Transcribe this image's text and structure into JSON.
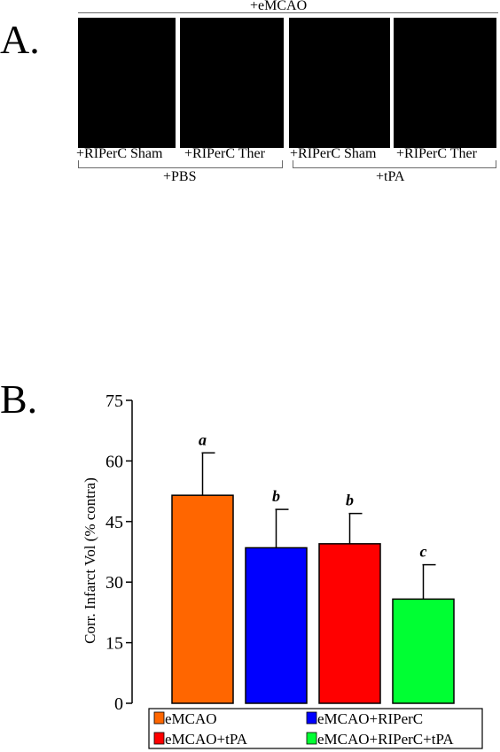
{
  "panel_a": {
    "label": "A.",
    "top_group": "+eMCAO",
    "conditions": [
      "+RIPerC Sham",
      "+RIPerC Ther",
      "+RIPerC Sham",
      "+RIPerC Ther"
    ],
    "bottom_groups": [
      "+PBS",
      "+tPA"
    ]
  },
  "panel_b": {
    "label": "B."
  },
  "chart_data": {
    "type": "bar",
    "ylabel": "Corr. Infarct Vol (% contra)",
    "xlabel": "",
    "ylim": [
      0,
      75
    ],
    "yticks": [
      0,
      15,
      30,
      45,
      60,
      75
    ],
    "categories": [
      "eMCAO",
      "eMCAO+RIPerC",
      "eMCAO+tPA",
      "eMCAO+RIPerC+tPA"
    ],
    "bars": [
      {
        "category": "eMCAO",
        "value": 51.5,
        "error": 10.5,
        "letter": "a",
        "color": "#ff6600"
      },
      {
        "category": "eMCAO+RIPerC",
        "value": 38.5,
        "error": 9.5,
        "letter": "b",
        "color": "#0000ff"
      },
      {
        "category": "eMCAO+tPA",
        "value": 39.5,
        "error": 7.5,
        "letter": "b",
        "color": "#ff0000"
      },
      {
        "category": "eMCAO+RIPerC+tPA",
        "value": 25.8,
        "error": 8.5,
        "letter": "c",
        "color": "#00ff33"
      }
    ],
    "legend": [
      {
        "label": "eMCAO",
        "color": "#ff6600"
      },
      {
        "label": "eMCAO+RIPerC",
        "color": "#0000ff"
      },
      {
        "label": "eMCAO+tPA",
        "color": "#ff0000"
      },
      {
        "label": "eMCAO+RIPerC+tPA",
        "color": "#00ff33"
      }
    ],
    "legend_placement": "bottom"
  }
}
